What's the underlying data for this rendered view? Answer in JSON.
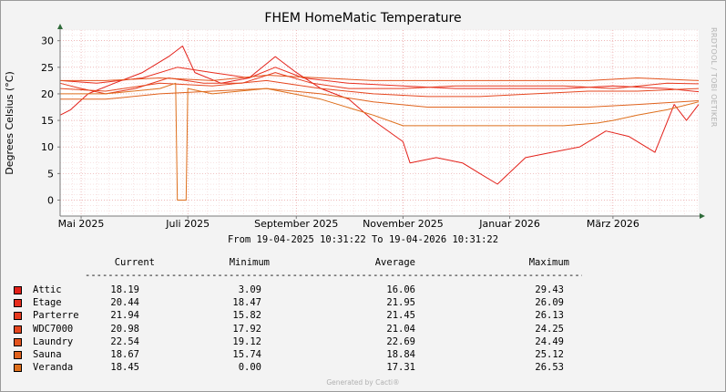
{
  "chart_data": {
    "type": "line",
    "title": "FHEM HomeMatic Temperature",
    "ylabel": "Degrees Celsius (°C)",
    "ylim": [
      -3,
      32
    ],
    "yticks": [
      0,
      5,
      10,
      15,
      20,
      25,
      30
    ],
    "x_ticks": [
      "Mai 2025",
      "Juli 2025",
      "September 2025",
      "November 2025",
      "Januar 2026",
      "März 2026"
    ],
    "x_tick_dates": [
      "2025-05-01",
      "2025-07-01",
      "2025-09-01",
      "2025-11-01",
      "2026-01-01",
      "2026-03-01"
    ],
    "x_range": [
      "2025-04-19",
      "2026-04-19"
    ],
    "date_range_text": "From 19-04-2025 10:31:22 To 19-04-2026 10:31:22",
    "vendor_text": "RRDTOOL / TOBI OETIKER",
    "footer": "Generated by Cacti®",
    "grid": true,
    "legend_position": "bottom",
    "legend_headers": {
      "current": "Current",
      "minimum": "Minimum",
      "average": "Average",
      "maximum": "Maximum"
    },
    "series": [
      {
        "name": "Attic",
        "color": "#e32019",
        "current": "18.19",
        "minimum": "3.09",
        "average": "16.06",
        "maximum": "29.43",
        "points": [
          [
            "2025-04-19",
            16
          ],
          [
            "2025-04-25",
            17
          ],
          [
            "2025-05-05",
            20
          ],
          [
            "2025-05-20",
            22
          ],
          [
            "2025-06-05",
            24
          ],
          [
            "2025-06-20",
            27
          ],
          [
            "2025-06-28",
            29
          ],
          [
            "2025-07-05",
            24
          ],
          [
            "2025-07-20",
            22
          ],
          [
            "2025-08-05",
            23
          ],
          [
            "2025-08-20",
            27
          ],
          [
            "2025-09-01",
            24
          ],
          [
            "2025-09-15",
            21
          ],
          [
            "2025-10-01",
            19
          ],
          [
            "2025-10-15",
            15
          ],
          [
            "2025-11-01",
            11
          ],
          [
            "2025-11-05",
            7
          ],
          [
            "2025-11-20",
            8
          ],
          [
            "2025-12-05",
            7
          ],
          [
            "2025-12-15",
            5
          ],
          [
            "2025-12-25",
            3
          ],
          [
            "2026-01-10",
            8
          ],
          [
            "2026-01-25",
            9
          ],
          [
            "2026-02-10",
            10
          ],
          [
            "2026-02-25",
            13
          ],
          [
            "2026-03-10",
            12
          ],
          [
            "2026-03-25",
            9
          ],
          [
            "2026-04-05",
            18
          ],
          [
            "2026-04-12",
            15
          ],
          [
            "2026-04-19",
            18
          ]
        ]
      },
      {
        "name": "Etage",
        "color": "#e82d1e",
        "current": "20.44",
        "minimum": "18.47",
        "average": "21.95",
        "maximum": "26.09",
        "points": [
          [
            "2025-04-19",
            22.5
          ],
          [
            "2025-05-10",
            22
          ],
          [
            "2025-06-05",
            23
          ],
          [
            "2025-06-25",
            25
          ],
          [
            "2025-07-15",
            24
          ],
          [
            "2025-08-05",
            23
          ],
          [
            "2025-08-20",
            25
          ],
          [
            "2025-09-05",
            23
          ],
          [
            "2025-10-01",
            22
          ],
          [
            "2025-11-01",
            21.5
          ],
          [
            "2025-12-01",
            21
          ],
          [
            "2026-01-01",
            21
          ],
          [
            "2026-02-01",
            21
          ],
          [
            "2026-03-01",
            21.5
          ],
          [
            "2026-04-01",
            21
          ],
          [
            "2026-04-19",
            20.4
          ]
        ]
      },
      {
        "name": "Parterre",
        "color": "#e63a1f",
        "current": "21.94",
        "minimum": "15.82",
        "average": "21.45",
        "maximum": "26.13",
        "points": [
          [
            "2025-04-19",
            22
          ],
          [
            "2025-05-01",
            21
          ],
          [
            "2025-05-15",
            20
          ],
          [
            "2025-06-01",
            21
          ],
          [
            "2025-06-20",
            23
          ],
          [
            "2025-07-10",
            22
          ],
          [
            "2025-08-01",
            22
          ],
          [
            "2025-08-20",
            24
          ],
          [
            "2025-09-10",
            22
          ],
          [
            "2025-10-01",
            21
          ],
          [
            "2025-11-01",
            21
          ],
          [
            "2025-12-01",
            21.5
          ],
          [
            "2026-01-01",
            21.5
          ],
          [
            "2026-02-01",
            21.5
          ],
          [
            "2026-03-01",
            21
          ],
          [
            "2026-04-01",
            22
          ],
          [
            "2026-04-19",
            21.9
          ]
        ]
      },
      {
        "name": "WDC7000",
        "color": "#e5461f",
        "current": "20.98",
        "minimum": "17.92",
        "average": "21.04",
        "maximum": "24.25",
        "points": [
          [
            "2025-04-19",
            21
          ],
          [
            "2025-05-15",
            20.5
          ],
          [
            "2025-06-15",
            22
          ],
          [
            "2025-07-15",
            21.5
          ],
          [
            "2025-08-15",
            22.5
          ],
          [
            "2025-09-15",
            21
          ],
          [
            "2025-10-15",
            20
          ],
          [
            "2025-11-15",
            19.5
          ],
          [
            "2025-12-15",
            19.5
          ],
          [
            "2026-01-15",
            20
          ],
          [
            "2026-02-15",
            20.5
          ],
          [
            "2026-03-15",
            20.5
          ],
          [
            "2026-04-19",
            21
          ]
        ]
      },
      {
        "name": "Laundry",
        "color": "#e3541e",
        "current": "22.54",
        "minimum": "19.12",
        "average": "22.69",
        "maximum": "24.49",
        "points": [
          [
            "2025-04-19",
            22.5
          ],
          [
            "2025-05-15",
            22.5
          ],
          [
            "2025-06-15",
            23
          ],
          [
            "2025-07-15",
            22.5
          ],
          [
            "2025-08-15",
            23.5
          ],
          [
            "2025-09-15",
            23
          ],
          [
            "2025-10-15",
            22.5
          ],
          [
            "2025-11-15",
            22.5
          ],
          [
            "2025-12-15",
            22.5
          ],
          [
            "2026-01-15",
            22.5
          ],
          [
            "2026-02-15",
            22.5
          ],
          [
            "2026-03-15",
            23
          ],
          [
            "2026-04-19",
            22.5
          ]
        ]
      },
      {
        "name": "Sauna",
        "color": "#e0621d",
        "current": "18.67",
        "minimum": "15.74",
        "average": "18.84",
        "maximum": "25.12",
        "points": [
          [
            "2025-04-19",
            19
          ],
          [
            "2025-05-15",
            19
          ],
          [
            "2025-06-15",
            20
          ],
          [
            "2025-07-15",
            20.5
          ],
          [
            "2025-08-15",
            21
          ],
          [
            "2025-09-15",
            20
          ],
          [
            "2025-10-15",
            18.5
          ],
          [
            "2025-11-15",
            17.5
          ],
          [
            "2025-12-15",
            17.5
          ],
          [
            "2026-01-15",
            17.5
          ],
          [
            "2026-02-15",
            17.5
          ],
          [
            "2026-03-15",
            18
          ],
          [
            "2026-04-19",
            18.7
          ]
        ]
      },
      {
        "name": "Veranda",
        "color": "#de6f1c",
        "current": "18.45",
        "minimum": "0.00",
        "average": "17.31",
        "maximum": "26.53",
        "points": [
          [
            "2025-04-19",
            20
          ],
          [
            "2025-05-15",
            20
          ],
          [
            "2025-06-15",
            21
          ],
          [
            "2025-06-24",
            22
          ],
          [
            "2025-06-25",
            0
          ],
          [
            "2025-06-30",
            0
          ],
          [
            "2025-07-01",
            21
          ],
          [
            "2025-07-15",
            20
          ],
          [
            "2025-08-15",
            21
          ],
          [
            "2025-09-15",
            19
          ],
          [
            "2025-10-15",
            16
          ],
          [
            "2025-11-01",
            14
          ],
          [
            "2025-12-01",
            14
          ],
          [
            "2026-01-01",
            14
          ],
          [
            "2026-02-01",
            14
          ],
          [
            "2026-02-20",
            14.5
          ],
          [
            "2026-03-01",
            15
          ],
          [
            "2026-03-15",
            16
          ],
          [
            "2026-04-01",
            17
          ],
          [
            "2026-04-19",
            18.5
          ]
        ]
      }
    ]
  }
}
